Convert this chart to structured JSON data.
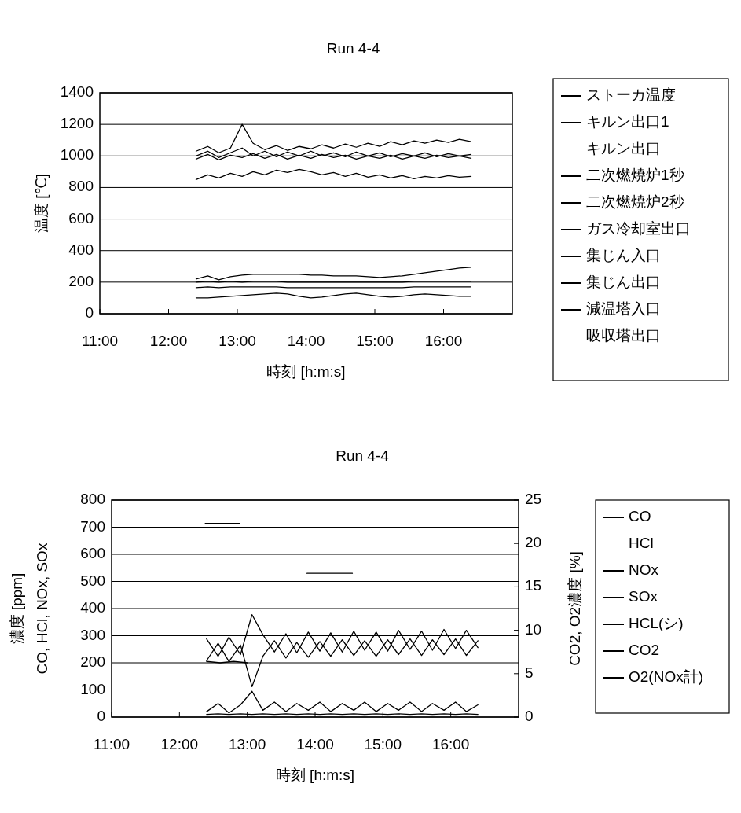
{
  "chart_data": [
    {
      "type": "line",
      "title": "Run 4-4",
      "xlabel": "時刻 [h:m:s]",
      "ylabel": "温度 [℃]",
      "xlim": [
        11,
        17
      ],
      "xticks": [
        {
          "value": 11,
          "label": "11:00"
        },
        {
          "value": 12,
          "label": "12:00"
        },
        {
          "value": 13,
          "label": "13:00"
        },
        {
          "value": 14,
          "label": "14:00"
        },
        {
          "value": 15,
          "label": "15:00"
        },
        {
          "value": 16,
          "label": "16:00"
        }
      ],
      "ylim": [
        0,
        1400
      ],
      "yticks": [
        0,
        200,
        400,
        600,
        800,
        1000,
        1200,
        1400
      ],
      "grid": "y",
      "legend": "right",
      "x": [
        12.4,
        12.57,
        12.73,
        12.9,
        13.07,
        13.23,
        13.4,
        13.57,
        13.73,
        13.9,
        14.07,
        14.23,
        14.4,
        14.57,
        14.73,
        14.9,
        15.07,
        15.23,
        15.4,
        15.57,
        15.73,
        15.9,
        16.07,
        16.23,
        16.4
      ],
      "series": [
        {
          "name": "ストーカ温度",
          "color": "#000000",
          "values": [
            850,
            880,
            860,
            890,
            870,
            900,
            880,
            910,
            895,
            915,
            900,
            880,
            895,
            870,
            890,
            865,
            880,
            860,
            875,
            855,
            870,
            860,
            875,
            865,
            870
          ]
        },
        {
          "name": "キルン出口1",
          "color": "#000000",
          "values": [
            1030,
            1060,
            1020,
            1050,
            1200,
            1080,
            1040,
            1065,
            1035,
            1060,
            1045,
            1070,
            1050,
            1075,
            1055,
            1080,
            1060,
            1090,
            1070,
            1095,
            1080,
            1100,
            1085,
            1105,
            1090
          ]
        },
        {
          "name": "キルン出口",
          "values": [
            null,
            null,
            null,
            null,
            null,
            null,
            null,
            null,
            null,
            null,
            null,
            null,
            null,
            null,
            null,
            null,
            null,
            null,
            null,
            null,
            null,
            null,
            null,
            null,
            null
          ]
        },
        {
          "name": "二次燃焼炉1秒",
          "color": "#000000",
          "values": [
            1000,
            1030,
            990,
            1020,
            1050,
            1000,
            1030,
            995,
            1025,
            1000,
            1030,
            1000,
            1020,
            995,
            1025,
            1000,
            1020,
            995,
            1015,
            1000,
            1020,
            995,
            1015,
            1000,
            1010
          ]
        },
        {
          "name": "二次燃焼炉2秒",
          "color": "#000000",
          "values": [
            980,
            1010,
            975,
            1005,
            990,
            1015,
            985,
            1010,
            980,
            1005,
            985,
            1010,
            990,
            1005,
            980,
            1000,
            985,
            1005,
            980,
            1000,
            985,
            1005,
            990,
            1000,
            985
          ]
        },
        {
          "name": "ガス冷却室出口",
          "color": "#000000",
          "values": [
            220,
            240,
            215,
            235,
            245,
            250,
            250,
            250,
            250,
            250,
            245,
            245,
            240,
            240,
            240,
            235,
            230,
            235,
            240,
            250,
            260,
            270,
            280,
            290,
            295
          ]
        },
        {
          "name": "集じん入口",
          "color": "#000000",
          "values": [
            200,
            205,
            200,
            205,
            200,
            205,
            205,
            205,
            200,
            200,
            200,
            200,
            200,
            200,
            200,
            200,
            200,
            200,
            200,
            205,
            205,
            205,
            205,
            205,
            205
          ]
        },
        {
          "name": "集じん出口",
          "color": "#000000",
          "values": [
            165,
            170,
            165,
            170,
            170,
            170,
            170,
            170,
            165,
            165,
            165,
            165,
            165,
            165,
            165,
            165,
            165,
            165,
            165,
            170,
            170,
            170,
            170,
            170,
            170
          ]
        },
        {
          "name": "減温塔入口",
          "color": "#000000",
          "values": [
            100,
            100,
            105,
            110,
            115,
            120,
            125,
            130,
            125,
            110,
            100,
            105,
            115,
            125,
            130,
            120,
            110,
            105,
            110,
            120,
            125,
            120,
            115,
            110,
            110
          ]
        },
        {
          "name": "吸収塔出口",
          "values": [
            null,
            null,
            null,
            null,
            null,
            null,
            null,
            null,
            null,
            null,
            null,
            null,
            null,
            null,
            null,
            null,
            null,
            null,
            null,
            null,
            null,
            null,
            null,
            null,
            null
          ]
        }
      ]
    },
    {
      "type": "line",
      "title": "Run 4-4",
      "xlabel": "時刻 [h:m:s]",
      "ylabel": "CO, HCl, NOx, SOx\n濃度 [ppm]",
      "y2label": "CO2, O2濃度 [%]",
      "xlim": [
        11,
        17
      ],
      "xticks": [
        {
          "value": 11,
          "label": "11:00"
        },
        {
          "value": 12,
          "label": "12:00"
        },
        {
          "value": 13,
          "label": "13:00"
        },
        {
          "value": 14,
          "label": "14:00"
        },
        {
          "value": 15,
          "label": "15:00"
        },
        {
          "value": 16,
          "label": "16:00"
        }
      ],
      "ylim": [
        0,
        800
      ],
      "yticks": [
        0,
        100,
        200,
        300,
        400,
        500,
        600,
        700,
        800
      ],
      "y2lim": [
        0,
        25
      ],
      "y2ticks": [
        0,
        5,
        10,
        15,
        20,
        25
      ],
      "grid": "y",
      "legend": "right",
      "x": [
        12.4,
        12.57,
        12.73,
        12.9,
        13.07,
        13.23,
        13.4,
        13.57,
        13.73,
        13.9,
        14.07,
        14.23,
        14.4,
        14.57,
        14.73,
        14.9,
        15.07,
        15.23,
        15.4,
        15.57,
        15.73,
        15.9,
        16.07,
        16.23,
        16.4
      ],
      "series": [
        {
          "name": "CO",
          "color": "#000000",
          "values": [
            20,
            50,
            15,
            45,
            95,
            25,
            55,
            20,
            50,
            25,
            55,
            20,
            50,
            25,
            55,
            20,
            50,
            25,
            55,
            20,
            50,
            25,
            55,
            20,
            45
          ]
        },
        {
          "name": "HCl",
          "values": [
            null,
            null,
            null,
            null,
            null,
            null,
            null,
            null,
            null,
            null,
            null,
            null,
            null,
            null,
            null,
            null,
            null,
            null,
            null,
            null,
            null,
            null,
            null,
            null,
            null
          ]
        },
        {
          "name": "NOx",
          "color": "#000000",
          "x": [
            12.4,
            12.6,
            12.8,
            13.0
          ],
          "values": [
            205,
            200,
            205,
            200
          ]
        },
        {
          "name": "SOx",
          "color": "#000000",
          "values": [
            10,
            12,
            10,
            12,
            10,
            12,
            10,
            12,
            10,
            12,
            10,
            12,
            10,
            12,
            10,
            12,
            10,
            12,
            10,
            12,
            10,
            12,
            10,
            12,
            10
          ]
        },
        {
          "name": "HCL(シ)",
          "color": "#000000",
          "x": [
            12.38,
            12.6,
            12.89,
            13.4,
            13.88,
            14.2,
            14.55
          ],
          "values": [
            714,
            714,
            714,
            null,
            530,
            530,
            530
          ]
        },
        {
          "name": "CO2",
          "color": "#000000",
          "axis": "y2",
          "values": [
            6.5,
            8.5,
            6.4,
            8.3,
            3.5,
            7.0,
            8.8,
            6.8,
            8.6,
            6.9,
            8.7,
            7.0,
            8.9,
            7.1,
            8.8,
            7.0,
            8.9,
            7.2,
            9.0,
            7.1,
            8.9,
            7.2,
            9.0,
            7.1,
            8.8
          ]
        },
        {
          "name": "O2(NOx計)",
          "color": "#000000",
          "axis": "y2",
          "values": [
            9.0,
            7.0,
            9.2,
            7.2,
            11.8,
            9.5,
            7.5,
            9.6,
            7.4,
            9.8,
            7.6,
            9.7,
            7.5,
            9.9,
            7.7,
            9.8,
            7.6,
            10.0,
            7.8,
            9.9,
            7.7,
            10.1,
            7.9,
            10.0,
            8.0
          ]
        }
      ]
    }
  ]
}
